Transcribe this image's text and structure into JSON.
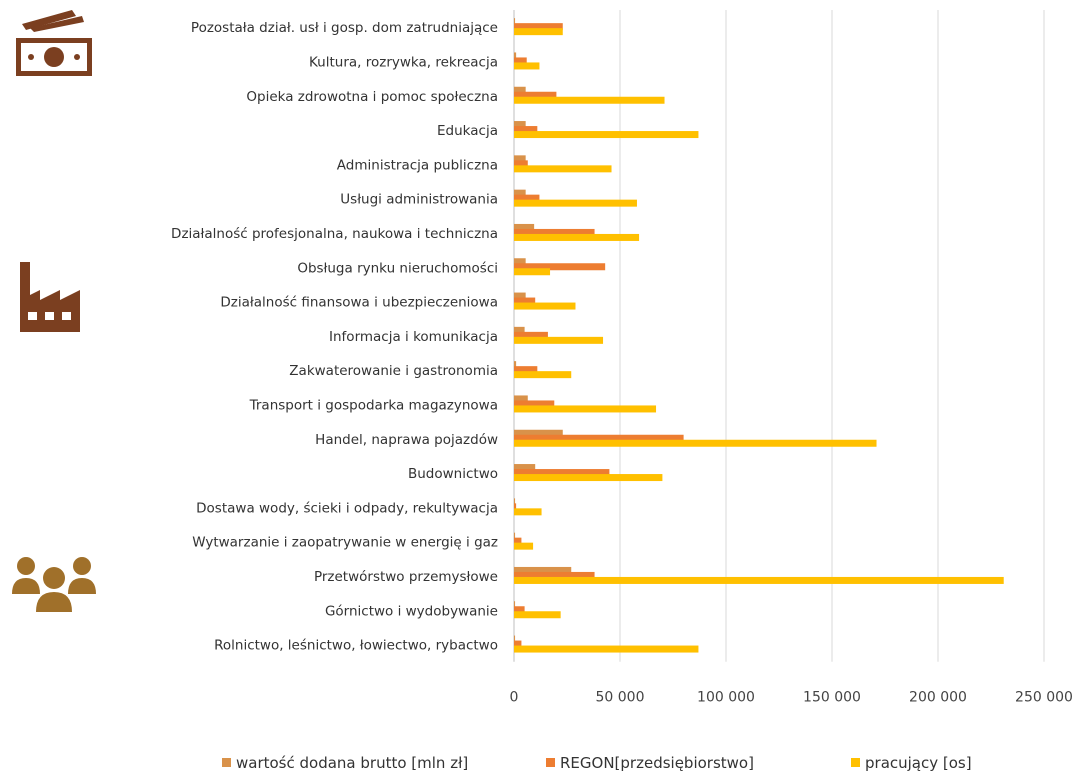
{
  "chart_data": {
    "type": "bar",
    "orientation": "horizontal",
    "categories": [
      "Pozostała dział. usł i gosp. dom zatrudniające",
      "Kultura, rozrywka, rekreacja",
      "Opieka zdrowotna i pomoc społeczna",
      "Edukacja",
      "Administracja publiczna",
      "Usługi administrowania",
      "Działalność profesjonalna, naukowa i techniczna",
      "Obsługa rynku nieruchomości",
      "Działalność finansowa i ubezpieczeniowa",
      "Informacja i komunikacja",
      "Zakwaterowanie i gastronomia",
      "Transport i gospodarka magazynowa",
      "Handel, naprawa pojazdów",
      "Budownictwo",
      "Dostawa wody, ścieki i odpady, rekultywacja",
      "Wytwarzanie i zaopatrywanie w energię i gaz",
      "Przetwórstwo przemysłowe",
      "Górnictwo i wydobywanie",
      "Rolnictwo, leśnictwo, łowiectwo, rybactwo"
    ],
    "series": [
      {
        "name": "wartość dodana brutto [mln zł]",
        "color": "#d9924a",
        "values": [
          500,
          1000,
          5500,
          5500,
          5500,
          5500,
          9500,
          5500,
          5500,
          5000,
          1000,
          6500,
          23000,
          10000,
          500,
          500,
          27000,
          500,
          500
        ]
      },
      {
        "name": "REGON[przedsiębiorstwo]",
        "color": "#ed7d31",
        "values": [
          23000,
          6000,
          20000,
          11000,
          6500,
          12000,
          38000,
          43000,
          10000,
          16000,
          11000,
          19000,
          80000,
          45000,
          1000,
          3500,
          38000,
          5000,
          3500
        ]
      },
      {
        "name": "pracujący [os]",
        "color": "#ffc000",
        "values": [
          23000,
          12000,
          71000,
          87000,
          46000,
          58000,
          59000,
          17000,
          29000,
          42000,
          27000,
          67000,
          171000,
          70000,
          13000,
          9000,
          231000,
          22000,
          87000
        ]
      }
    ],
    "x_ticks": [
      "0",
      "50 000",
      "100 000",
      "150 000",
      "200 000",
      "250 000"
    ],
    "xlim": [
      0,
      250000
    ],
    "grid": true,
    "legend_position": "bottom",
    "icons": [
      {
        "name": "money-icon",
        "color": "#7b3f20"
      },
      {
        "name": "factory-icon",
        "color": "#7b3f20"
      },
      {
        "name": "people-icon",
        "color": "#a0702a"
      }
    ]
  }
}
